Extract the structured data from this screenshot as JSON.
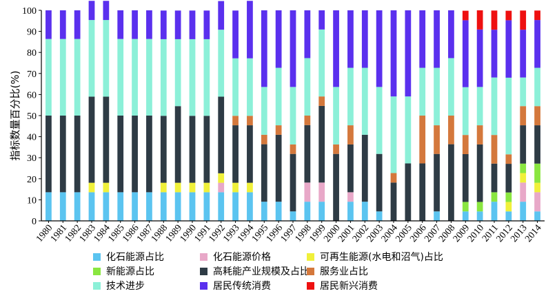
{
  "chart_data": {
    "type": "bar",
    "stacked": true,
    "ylabel": "指标数量百分比(%)",
    "ylim": [
      0,
      100
    ],
    "yticks": [
      0,
      10,
      20,
      30,
      40,
      50,
      60,
      70,
      80,
      90,
      100
    ],
    "grid": false,
    "legend_position": "bottom",
    "categories": [
      "1980",
      "1981",
      "1982",
      "1983",
      "1984",
      "1985",
      "1986",
      "1987",
      "1988",
      "1989",
      "1990",
      "1991",
      "1992",
      "1993",
      "1994",
      "1995",
      "1996",
      "1997",
      "1998",
      "1999",
      "2000",
      "2001",
      "2002",
      "2003",
      "2004",
      "2005",
      "2006",
      "2007",
      "2008",
      "2009",
      "2010",
      "2011",
      "2012",
      "2013",
      "2014"
    ],
    "series": [
      {
        "name": "化石能源占比",
        "color": "#5bc4f0",
        "values": [
          13.6,
          13.6,
          13.6,
          13.6,
          13.6,
          13.6,
          13.6,
          13.6,
          13.6,
          13.6,
          13.6,
          13.6,
          13.6,
          13.6,
          13.6,
          9.1,
          9.1,
          4.5,
          9.1,
          9.1,
          0,
          9.1,
          9.1,
          4.5,
          0,
          0,
          0,
          4.5,
          0,
          4.5,
          4.5,
          9.1,
          4.5,
          9.1,
          4.5
        ]
      },
      {
        "name": "化石能源价格",
        "color": "#e8a8c8",
        "values": [
          0,
          0,
          0,
          0,
          0,
          0,
          0,
          0,
          0,
          0,
          0,
          0,
          4.5,
          0,
          0,
          0,
          0,
          0,
          9.1,
          9.1,
          0,
          4.5,
          0,
          0,
          0,
          0,
          0,
          0,
          0,
          0,
          0,
          0,
          0,
          9.1,
          9.1
        ]
      },
      {
        "name": "可再生能源(水电和沼气)占比",
        "color": "#f0f03a",
        "values": [
          0,
          0,
          0,
          4.5,
          4.5,
          0,
          0,
          0,
          4.5,
          4.5,
          4.5,
          4.5,
          4.5,
          4.5,
          4.5,
          0,
          0,
          0,
          0,
          0,
          0,
          0,
          0,
          0,
          0,
          0,
          0,
          0,
          0,
          0,
          0,
          0,
          4.5,
          4.5,
          4.5
        ]
      },
      {
        "name": "新能源占比",
        "color": "#8ae640",
        "values": [
          0,
          0,
          0,
          0,
          0,
          0,
          0,
          0,
          0,
          0,
          0,
          0,
          0,
          0,
          0,
          0,
          0,
          0,
          0,
          0,
          0,
          0,
          0,
          0,
          0,
          0,
          0,
          0,
          0,
          4.5,
          4.5,
          4.5,
          4.5,
          4.5,
          9.1
        ]
      },
      {
        "name": "高耗能产业规模及占比",
        "color": "#2e3b45",
        "values": [
          36.4,
          36.4,
          36.4,
          40.9,
          40.9,
          36.4,
          36.4,
          36.4,
          31.8,
          36.4,
          31.8,
          31.8,
          36.4,
          27.3,
          27.3,
          27.3,
          31.8,
          27.3,
          27.3,
          36.4,
          31.8,
          22.7,
          31.8,
          27.3,
          18.2,
          27.3,
          27.3,
          27.3,
          36.4,
          22.7,
          27.3,
          13.6,
          13.6,
          18.2,
          18.2
        ]
      },
      {
        "name": "服务业占比",
        "color": "#d4783c",
        "values": [
          0,
          0,
          0,
          0,
          0,
          0,
          0,
          0,
          0,
          0,
          0,
          0,
          0,
          4.5,
          4.5,
          4.5,
          4.5,
          4.5,
          4.5,
          4.5,
          4.5,
          9.1,
          0,
          0,
          4.5,
          0,
          22.7,
          13.6,
          13.6,
          9.1,
          9.1,
          13.6,
          4.5,
          9.1,
          9.1
        ]
      },
      {
        "name": "技术进步",
        "color": "#8cf0d8",
        "values": [
          36.4,
          36.4,
          36.4,
          36.4,
          36.4,
          36.4,
          36.4,
          36.4,
          36.4,
          31.8,
          36.4,
          36.4,
          31.8,
          27.3,
          27.3,
          22.7,
          27.3,
          27.3,
          27.3,
          31.8,
          27.3,
          27.3,
          31.8,
          31.8,
          36.4,
          31.8,
          22.7,
          27.3,
          27.3,
          22.7,
          18.2,
          27.3,
          36.4,
          13.6,
          18.2
        ]
      },
      {
        "name": "居民传统消费",
        "color": "#5a30ee",
        "values": [
          13.6,
          13.6,
          13.6,
          9.1,
          9.1,
          13.6,
          13.6,
          13.6,
          13.6,
          13.6,
          13.6,
          13.6,
          13.6,
          22.7,
          27.3,
          36.4,
          27.3,
          36.4,
          22.7,
          9.1,
          36.4,
          27.3,
          27.3,
          36.4,
          40.9,
          40.9,
          27.3,
          27.3,
          22.7,
          31.8,
          27.3,
          22.7,
          27.3,
          22.7,
          22.7
        ]
      },
      {
        "name": "居民新兴消费",
        "color": "#ee1010",
        "values": [
          0,
          0,
          0,
          0,
          0,
          0,
          0,
          0,
          0,
          0,
          0,
          0,
          0,
          0,
          0,
          0,
          0,
          0,
          0,
          0,
          0,
          0,
          0,
          0,
          0,
          0,
          0,
          0,
          0,
          4.5,
          9.1,
          9.1,
          4.5,
          9.1,
          4.5
        ]
      }
    ]
  }
}
